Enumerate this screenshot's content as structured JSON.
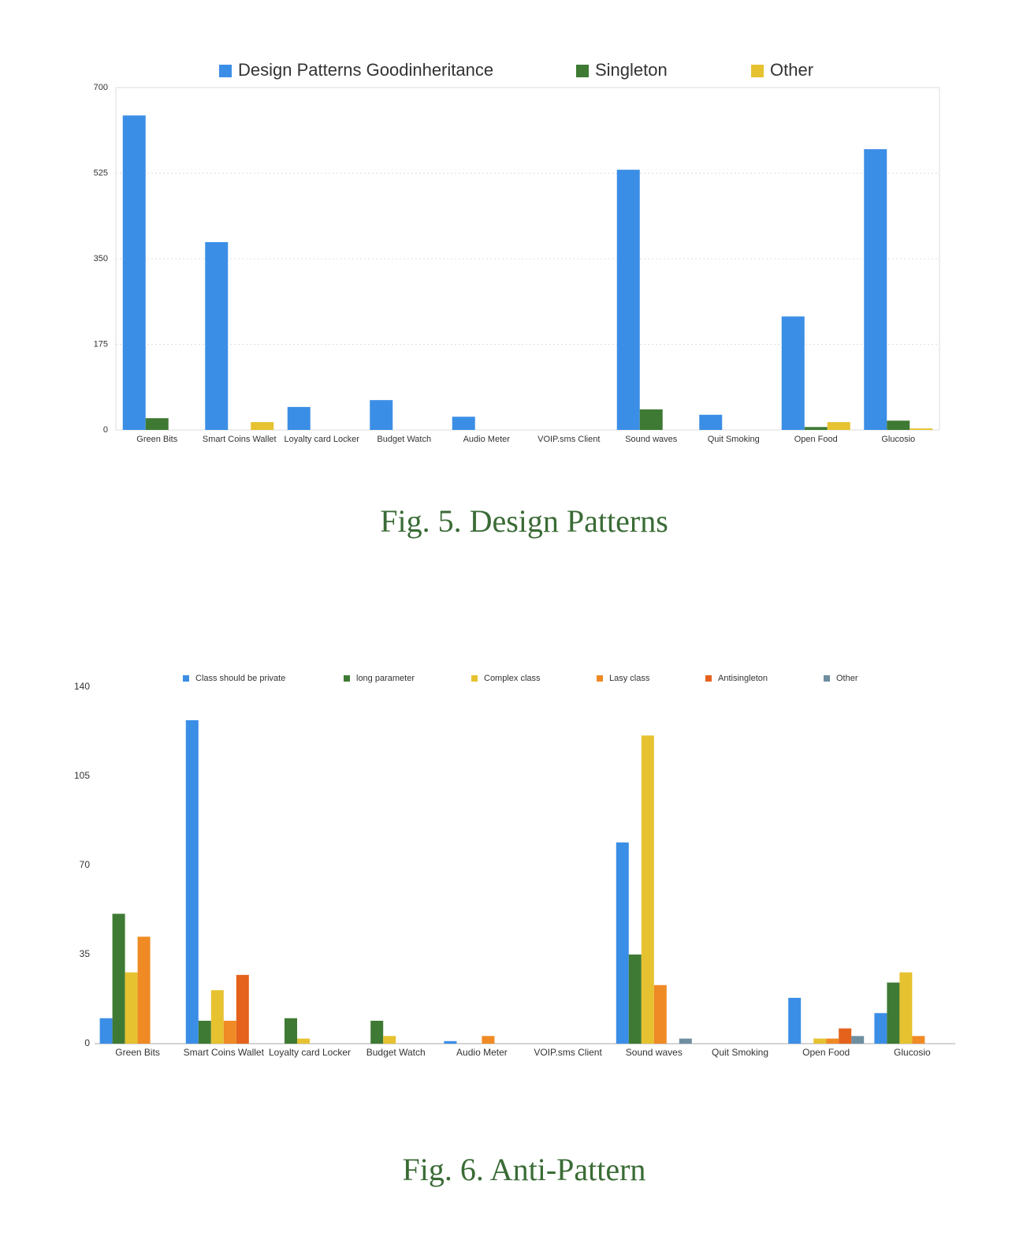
{
  "chart_data": [
    {
      "type": "bar",
      "caption": "Fig. 5.   Design Patterns",
      "categories": [
        "Green Bits",
        "Smart Coins Wallet",
        "Loyalty card Locker",
        "Budget Watch",
        "Audio Meter",
        "VOIP.sms Client",
        "Sound waves",
        "Quit Smoking",
        "Open Food",
        "Glucosio"
      ],
      "series": [
        {
          "name": "Design Patterns Goodinheritance",
          "color": "#3b8ee6",
          "values": [
            643,
            384,
            47,
            61,
            27,
            0,
            532,
            31,
            232,
            574
          ]
        },
        {
          "name": "Singleton",
          "color": "#3f7a34",
          "values": [
            24,
            0,
            0,
            0,
            0,
            0,
            42,
            0,
            6,
            19
          ]
        },
        {
          "name": "Other",
          "color": "#e6c230",
          "values": [
            0,
            16,
            0,
            0,
            0,
            0,
            0,
            0,
            16,
            3
          ]
        }
      ],
      "ylim": [
        0,
        700
      ],
      "yticks": [
        0,
        175,
        350,
        525,
        700
      ],
      "grid": true,
      "legend": "top"
    },
    {
      "type": "bar",
      "caption": "Fig. 6.   Anti-Pattern",
      "categories": [
        "Green Bits",
        "Smart Coins Wallet",
        "Loyalty card Locker",
        "Budget Watch",
        "Audio Meter",
        "VOIP.sms Client",
        "Sound waves",
        "Quit Smoking",
        "Open Food",
        "Glucosio"
      ],
      "series": [
        {
          "name": "Class should be private",
          "color": "#3b8ee6",
          "values": [
            10,
            127,
            0,
            0,
            1,
            0,
            79,
            0,
            18,
            12
          ]
        },
        {
          "name": "long parameter",
          "color": "#3f7a34",
          "values": [
            51,
            9,
            10,
            9,
            0,
            0,
            35,
            0,
            0,
            24
          ]
        },
        {
          "name": "Complex class",
          "color": "#e6c230",
          "values": [
            28,
            21,
            2,
            3,
            0,
            0,
            121,
            0,
            2,
            28
          ]
        },
        {
          "name": "Lasy class",
          "color": "#ef8a24",
          "values": [
            42,
            9,
            0,
            0,
            3,
            0,
            23,
            0,
            2,
            3
          ]
        },
        {
          "name": "Antisingleton",
          "color": "#e4621c",
          "values": [
            0,
            27,
            0,
            0,
            0,
            0,
            0,
            0,
            6,
            0
          ]
        },
        {
          "name": "Other",
          "color": "#6f8ea0",
          "values": [
            0,
            0,
            0,
            0,
            0,
            0,
            2,
            0,
            3,
            0
          ]
        }
      ],
      "ylim": [
        0,
        140
      ],
      "yticks": [
        0,
        35,
        70,
        105,
        140
      ],
      "grid": false,
      "legend": "top"
    }
  ]
}
